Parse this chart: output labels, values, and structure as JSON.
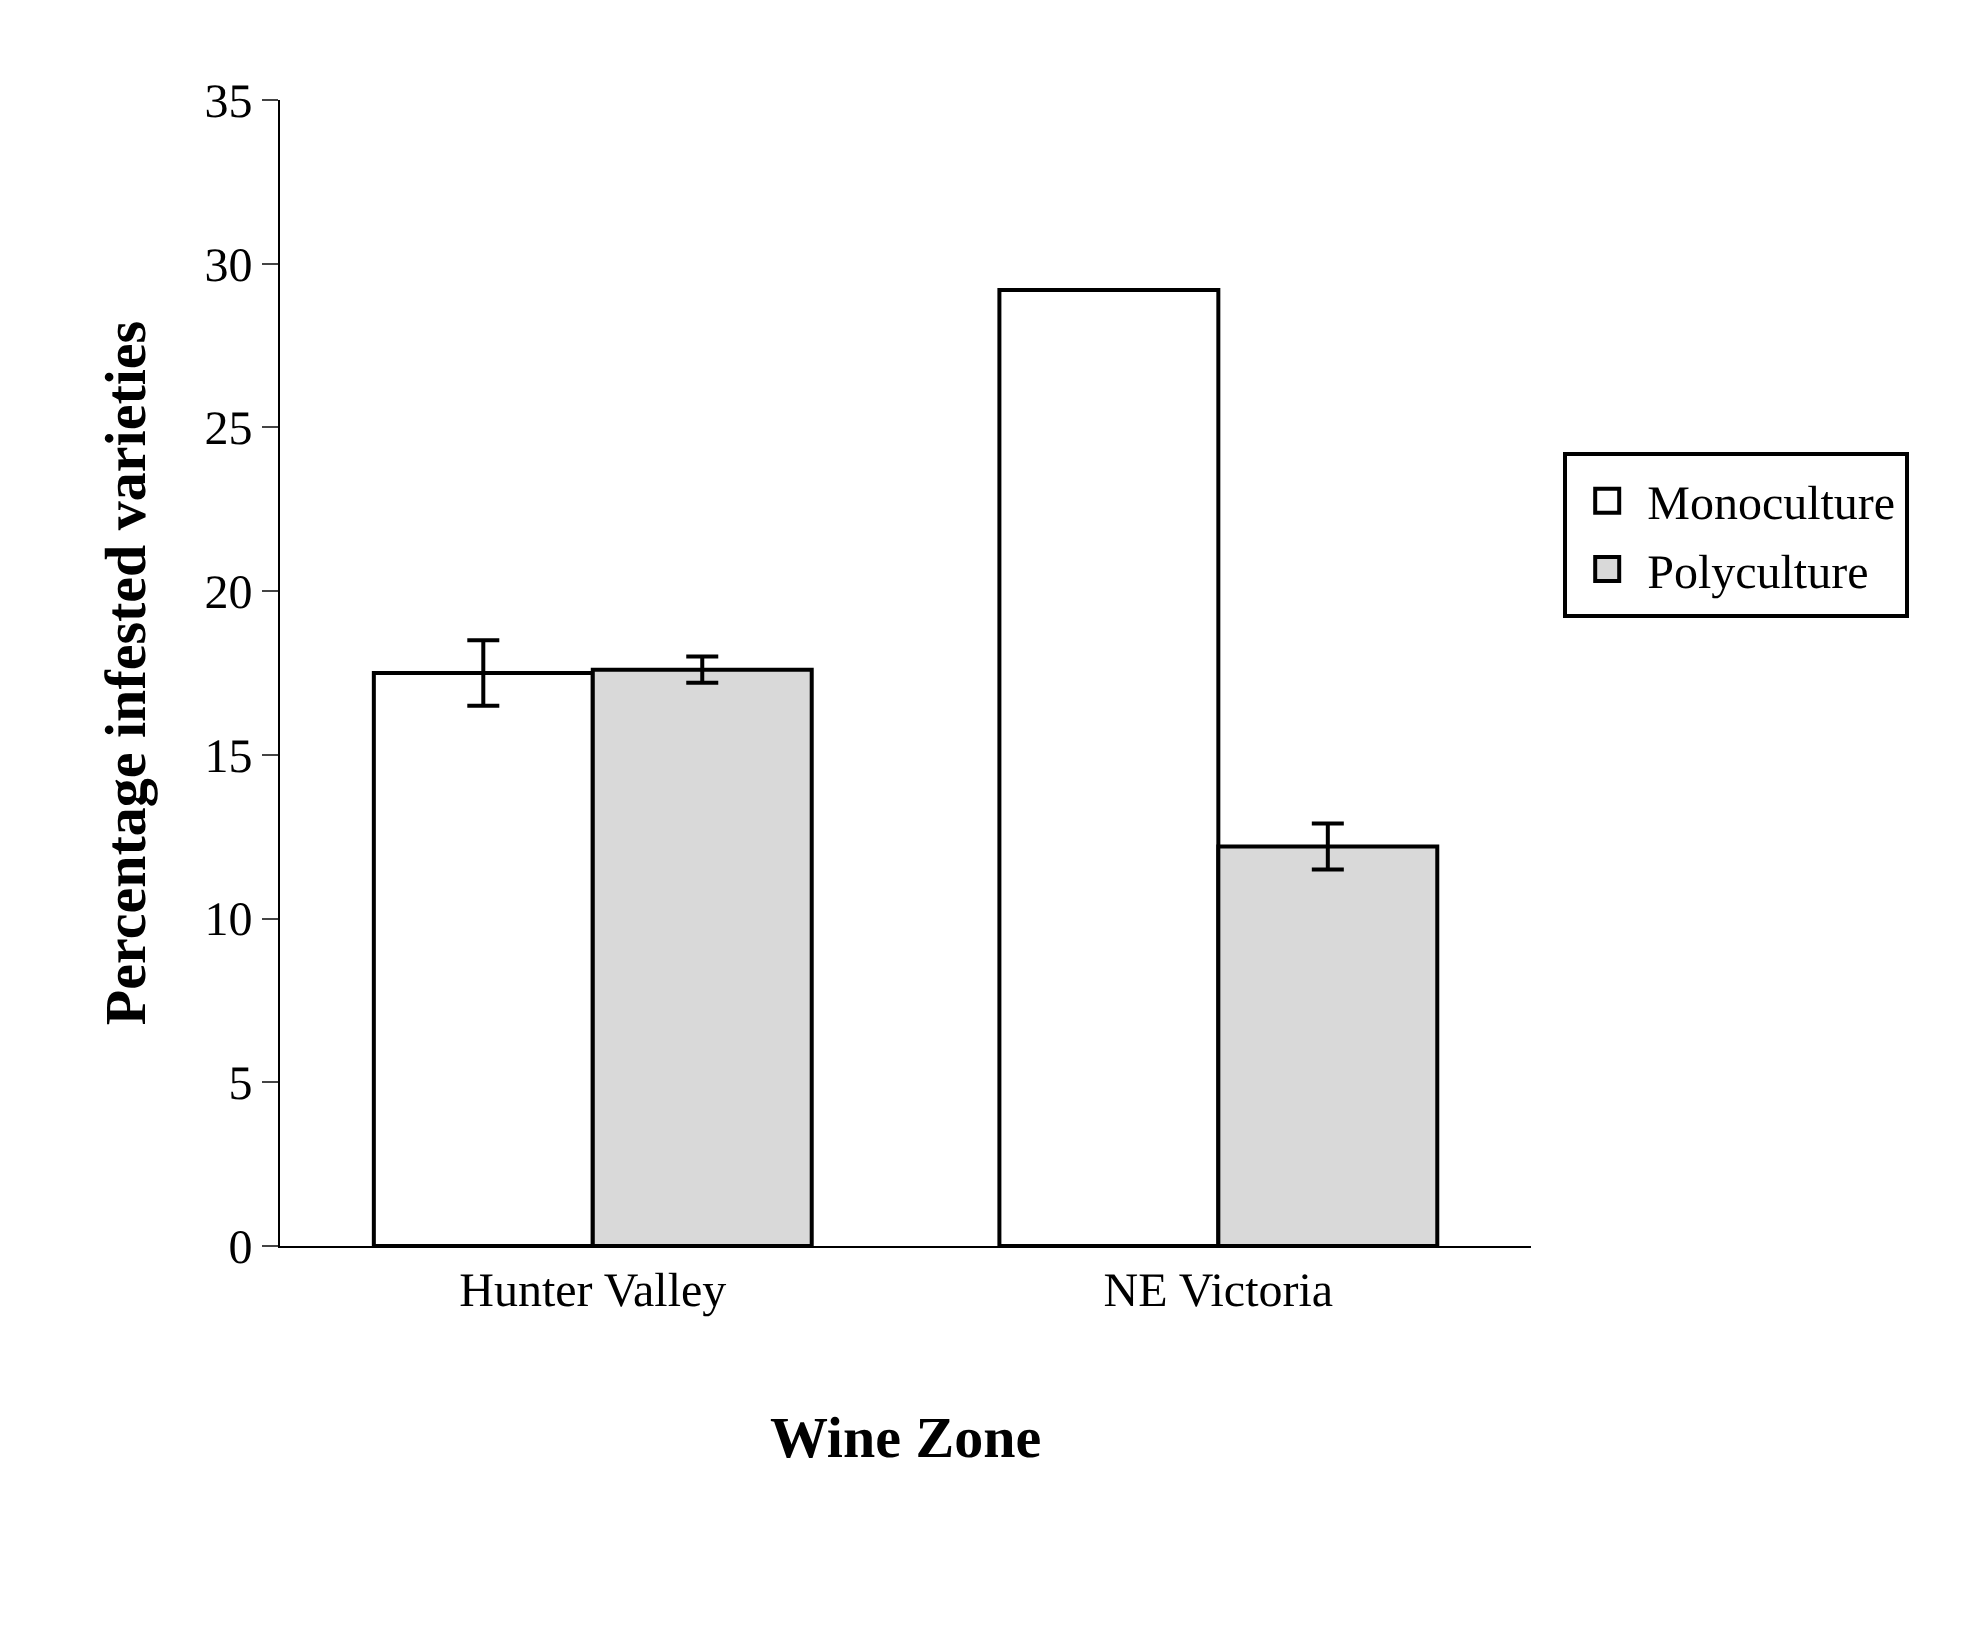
{
  "chart_data": {
    "type": "bar",
    "xlabel": "Wine Zone",
    "ylabel": "Percentage infested varieties",
    "categories": [
      "Hunter Valley",
      "NE Victoria"
    ],
    "series": [
      {
        "name": "Monoculture",
        "color": "#ffffff",
        "values": [
          17.5,
          29.2
        ],
        "errors": [
          1.0,
          null
        ]
      },
      {
        "name": "Polyculture",
        "color": "#d9d9d9",
        "values": [
          17.6,
          12.2
        ],
        "errors": [
          0.4,
          0.7
        ]
      }
    ],
    "ylim": [
      0,
      35
    ],
    "yticks": [
      0,
      5,
      10,
      15,
      20,
      25,
      30,
      35
    ],
    "legend": "right"
  }
}
